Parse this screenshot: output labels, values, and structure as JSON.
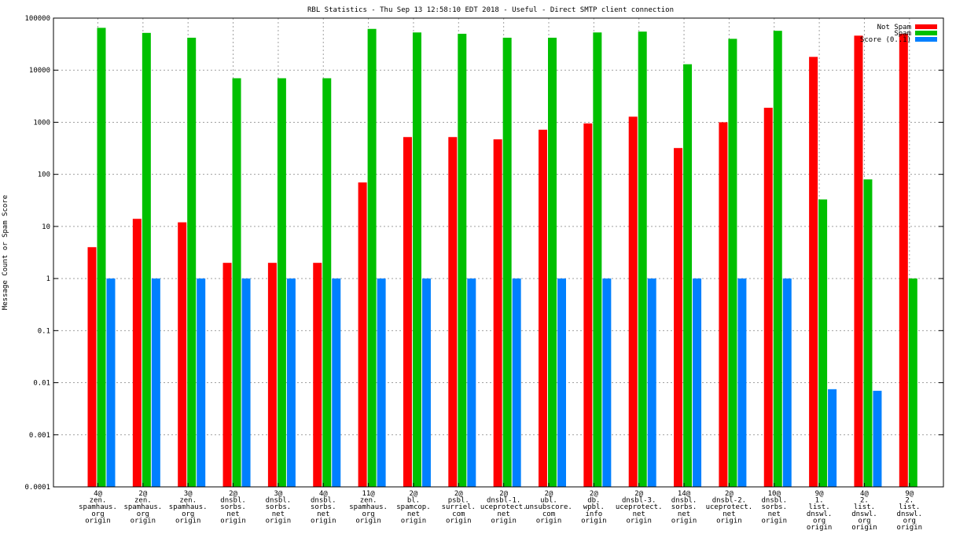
{
  "chart_data": {
    "type": "bar",
    "title": "RBL Statistics - Thu Sep 13 12:58:10 EDT 2018 - Useful - Direct SMTP client connection",
    "xlabel": "",
    "ylabel": "Message Count or Spam Score",
    "yscale": "log",
    "ylim": [
      0.0001,
      100000
    ],
    "y_ticks": [
      "0.0001",
      "0.001",
      "0.01",
      "0.1",
      "1",
      "10",
      "100",
      "1000",
      "10000",
      "100000"
    ],
    "grid": true,
    "legend_position": "top-right",
    "categories": [
      [
        "4@",
        "zen.",
        "spamhaus.",
        "org",
        "origin"
      ],
      [
        "2@",
        "zen.",
        "spamhaus.",
        "org",
        "origin"
      ],
      [
        "3@",
        "zen.",
        "spamhaus.",
        "org",
        "origin"
      ],
      [
        "2@",
        "dnsbl.",
        "sorbs.",
        "net",
        "origin"
      ],
      [
        "3@",
        "dnsbl.",
        "sorbs.",
        "net",
        "origin"
      ],
      [
        "4@",
        "dnsbl.",
        "sorbs.",
        "net",
        "origin"
      ],
      [
        "11@",
        "zen.",
        "spamhaus.",
        "org",
        "origin"
      ],
      [
        "2@",
        "bl.",
        "spamcop.",
        "net",
        "origin"
      ],
      [
        "2@",
        "psbl.",
        "surriel.",
        "com",
        "origin"
      ],
      [
        "2@",
        "dnsbl-1.",
        "uceprotect.",
        "net",
        "origin"
      ],
      [
        "2@",
        "ubl.",
        "unsubscore.",
        "com",
        "origin"
      ],
      [
        "2@",
        "db.",
        "wpbl.",
        "info",
        "origin"
      ],
      [
        "2@",
        "dnsbl-3.",
        "uceprotect.",
        "net",
        "origin"
      ],
      [
        "14@",
        "dnsbl.",
        "sorbs.",
        "net",
        "origin"
      ],
      [
        "2@",
        "dnsbl-2.",
        "uceprotect.",
        "net",
        "origin"
      ],
      [
        "10@",
        "dnsbl.",
        "sorbs.",
        "net",
        "origin"
      ],
      [
        "9@",
        "1.",
        "list.",
        "dnswl.",
        "org",
        "origin"
      ],
      [
        "4@",
        "2.",
        "list.",
        "dnswl.",
        "org",
        "origin"
      ],
      [
        "9@",
        "2.",
        "list.",
        "dnswl.",
        "org",
        "origin"
      ]
    ],
    "series": [
      {
        "name": "Not Spam",
        "color": "#ff0000",
        "values": [
          4,
          14,
          12,
          2,
          2,
          2,
          70,
          520,
          520,
          470,
          720,
          950,
          1280,
          320,
          1000,
          1900,
          18000,
          46000,
          50000
        ]
      },
      {
        "name": "Spam",
        "color": "#00c000",
        "values": [
          65000,
          52000,
          42000,
          7000,
          7000,
          7000,
          62000,
          53000,
          50000,
          42000,
          42000,
          53000,
          55000,
          13000,
          40000,
          57000,
          33,
          80,
          1
        ]
      },
      {
        "name": "Score (0..1)",
        "color": "#0080ff",
        "values": [
          1,
          1,
          1,
          1,
          1,
          1,
          1,
          1,
          1,
          1,
          1,
          1,
          1,
          1,
          1,
          1,
          0.0075,
          0.007,
          null
        ]
      }
    ]
  }
}
